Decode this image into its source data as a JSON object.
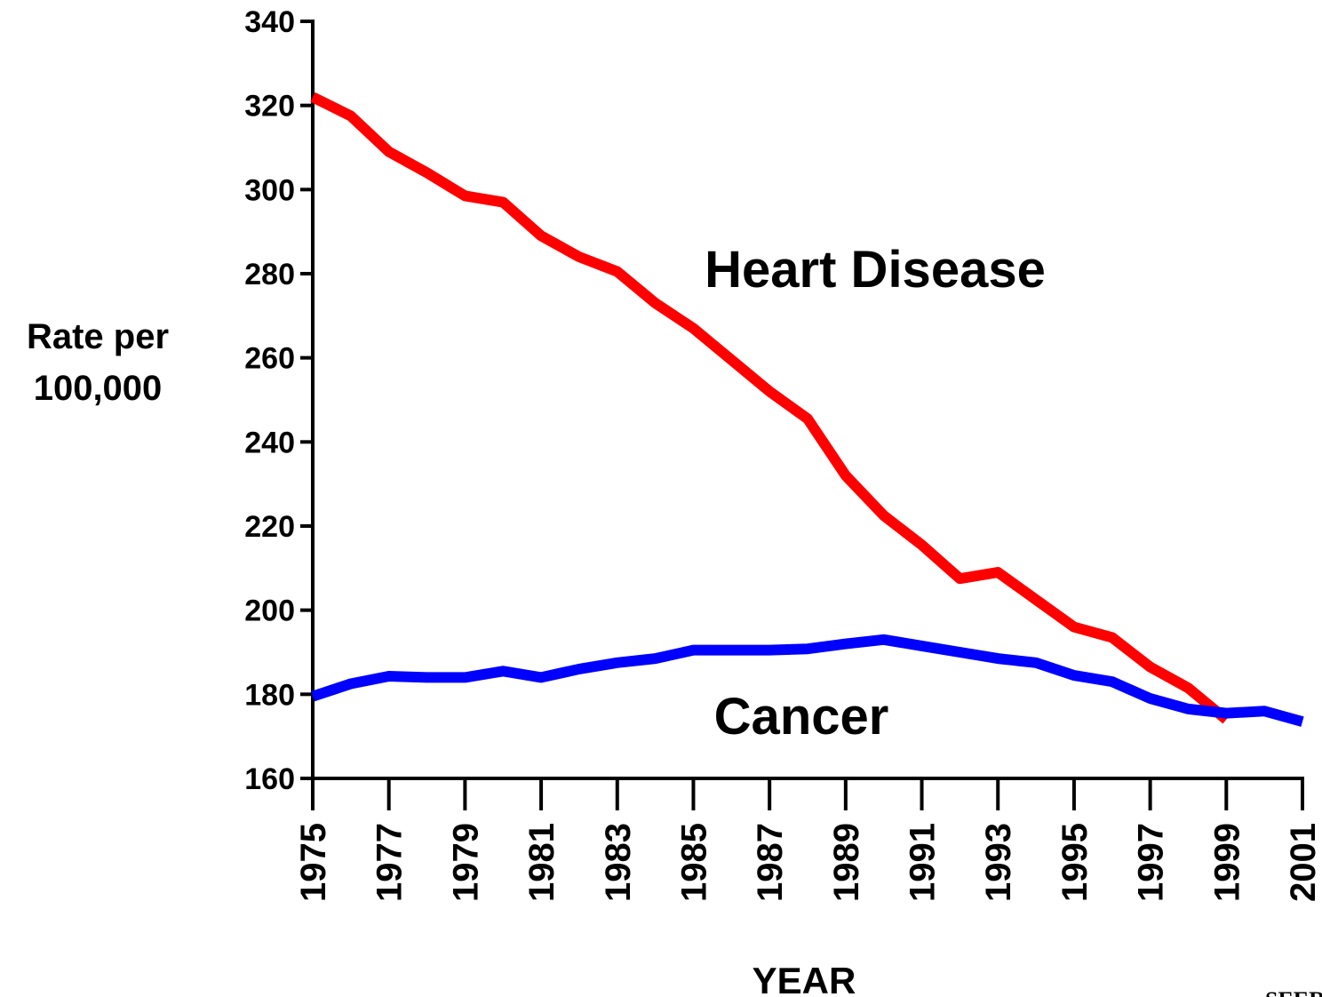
{
  "chart_data": {
    "type": "line",
    "xlabel": "YEAR",
    "ylabel": [
      "Rate per",
      "100,000"
    ],
    "annotations": [
      "Heart Disease",
      "Cancer"
    ],
    "source": "SEER",
    "x": [
      1975,
      1976,
      1977,
      1978,
      1979,
      1980,
      1981,
      1982,
      1983,
      1984,
      1985,
      1986,
      1987,
      1988,
      1989,
      1990,
      1991,
      1992,
      1993,
      1994,
      1995,
      1996,
      1997,
      1998,
      1999,
      2000,
      2001
    ],
    "series": [
      {
        "name": "Heart Disease",
        "color": "#ff0000",
        "values": [
          322,
          317.5,
          309,
          304,
          298.5,
          297,
          289,
          284,
          280.5,
          273,
          267,
          259.5,
          252,
          245.5,
          232,
          222.5,
          215.5,
          207.5,
          209,
          202.5,
          196,
          193.5,
          186.5,
          181.5,
          174,
          null,
          null
        ]
      },
      {
        "name": "Cancer",
        "color": "#0000ff",
        "values": [
          179.5,
          182.5,
          184.3,
          184,
          184,
          185.5,
          184,
          186,
          187.5,
          188.5,
          190.5,
          190.5,
          190.5,
          190.8,
          192,
          193,
          191.5,
          190,
          188.5,
          187.5,
          184.5,
          183,
          179,
          176.5,
          175.5,
          176,
          173.5
        ]
      }
    ],
    "xlim": [
      1975,
      2001
    ],
    "xticks": [
      1975,
      1977,
      1979,
      1981,
      1983,
      1985,
      1987,
      1989,
      1991,
      1993,
      1995,
      1997,
      1999,
      2001
    ],
    "ylim": [
      160,
      340
    ],
    "yticks": [
      160,
      180,
      200,
      220,
      240,
      260,
      280,
      300,
      320,
      340
    ],
    "grid": false
  }
}
